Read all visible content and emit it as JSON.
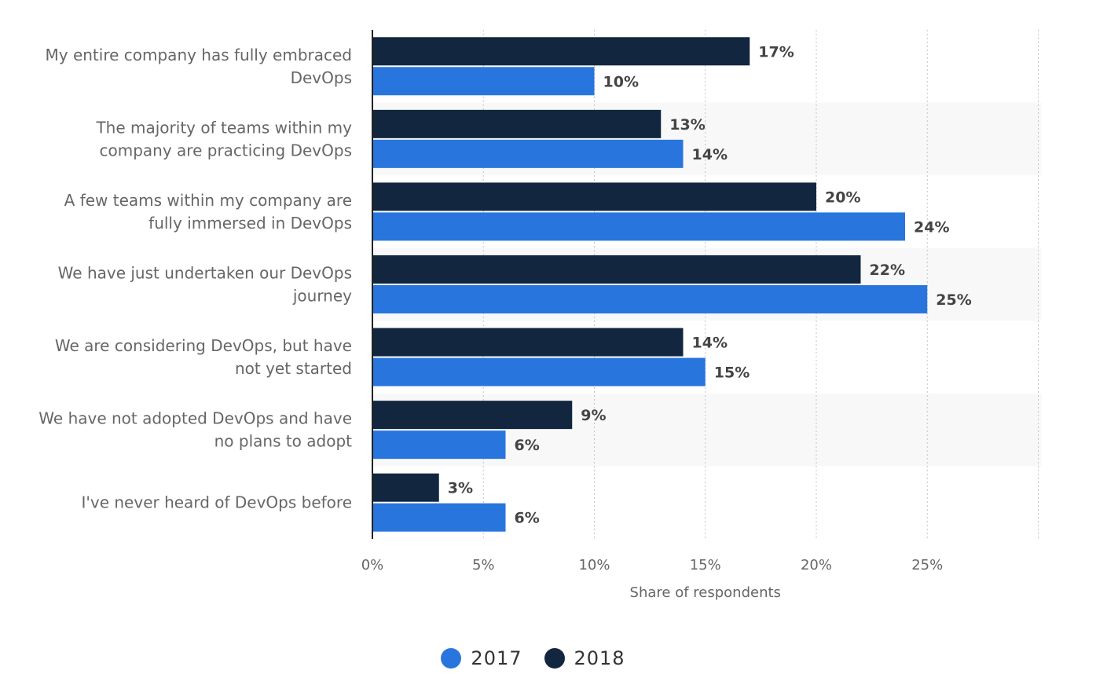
{
  "chart_data": {
    "type": "bar",
    "orientation": "horizontal",
    "categories": [
      [
        "My entire company has fully embraced",
        "DevOps"
      ],
      [
        "The majority of teams within my",
        "company are practicing DevOps"
      ],
      [
        "A few teams within my company are",
        "fully immersed in DevOps"
      ],
      [
        "We have just undertaken our DevOps",
        "journey"
      ],
      [
        "We are considering DevOps, but have",
        "not yet started"
      ],
      [
        "We have not adopted DevOps and have",
        "no plans to adopt"
      ],
      [
        "I've never heard of DevOps before"
      ]
    ],
    "series": [
      {
        "name": "2018",
        "color": "#13263f",
        "values": [
          17,
          13,
          20,
          22,
          14,
          9,
          3
        ],
        "labels": [
          "17%",
          "13%",
          "20%",
          "22%",
          "14%",
          "9%",
          "3%"
        ]
      },
      {
        "name": "2017",
        "color": "#2876dd",
        "values": [
          10,
          14,
          24,
          25,
          15,
          6,
          6
        ],
        "labels": [
          "10%",
          "14%",
          "24%",
          "25%",
          "15%",
          "6%",
          "6%"
        ]
      }
    ],
    "xlim": [
      0,
      30
    ],
    "xticks": [
      0,
      5,
      10,
      15,
      20,
      25
    ],
    "xtick_labels": [
      "0%",
      "5%",
      "10%",
      "15%",
      "20%",
      "25%"
    ],
    "xlabel": "Share of respondents",
    "ylabel": "",
    "grid": true,
    "legend_position": "bottom-center"
  },
  "legend": {
    "items": [
      {
        "label": "2017",
        "color": "#2876dd"
      },
      {
        "label": "2018",
        "color": "#13263f"
      }
    ]
  }
}
